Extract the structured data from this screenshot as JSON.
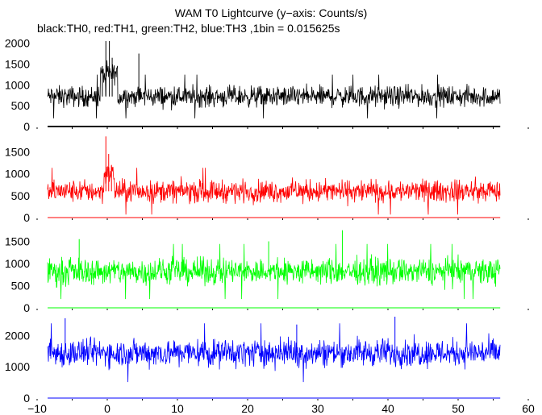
{
  "title": "WAM T0 Lightcurve (y−axis: Counts/s)",
  "subtitle": "black:TH0, red:TH1, green:TH2, blue:TH3 ,1bin = 0.015625s",
  "chart_data": {
    "type": "line",
    "x_ticks": [
      -10,
      0,
      10,
      20,
      30,
      40,
      50,
      60
    ],
    "xlim": [
      -10,
      60
    ],
    "data_x_range": [
      -8.5,
      56
    ],
    "bin_size_s": 0.015625,
    "grid": false,
    "panels": [
      {
        "series_name": "TH0",
        "color": "#000000",
        "ylim": [
          0,
          2050
        ],
        "y_ticks": [
          0,
          500,
          1000,
          1500,
          2000
        ],
        "baseline_mean": 720,
        "noise_lo": 420,
        "noise_hi": 1120,
        "features": [
          {
            "x": -0.2,
            "y": 2050
          },
          {
            "x": 0.3,
            "y": 2050
          },
          {
            "x": 0.7,
            "y": 1650
          },
          {
            "x": -0.7,
            "y": 1450
          },
          {
            "x": 4.5,
            "y": 1750
          }
        ],
        "burst": {
          "start": -1,
          "end": 1.5,
          "level": 1250
        }
      },
      {
        "series_name": "TH1",
        "color": "#ff0000",
        "ylim": [
          0,
          1800
        ],
        "y_ticks": [
          0,
          500,
          1000,
          1500
        ],
        "baseline_mean": 600,
        "noise_lo": 250,
        "noise_hi": 960,
        "features": [
          {
            "x": -0.2,
            "y": 1850
          },
          {
            "x": 0.2,
            "y": 1450
          },
          {
            "x": 0.6,
            "y": 1200
          }
        ],
        "burst": {
          "start": -0.5,
          "end": 1.0,
          "level": 1000
        }
      },
      {
        "series_name": "TH2",
        "color": "#00ff00",
        "ylim": [
          0,
          1800
        ],
        "y_ticks": [
          0,
          500,
          1000,
          1500
        ],
        "baseline_mean": 820,
        "noise_lo": 420,
        "noise_hi": 1250,
        "features": [
          {
            "x": 33.5,
            "y": 1750
          },
          {
            "x": -4,
            "y": 1550
          },
          {
            "x": 23,
            "y": 1500
          }
        ],
        "burst": null
      },
      {
        "series_name": "TH3",
        "color": "#0000ff",
        "ylim": [
          0,
          2600
        ],
        "y_ticks": [
          0,
          1000,
          2000
        ],
        "baseline_mean": 1450,
        "noise_lo": 800,
        "noise_hi": 2050,
        "features": [
          {
            "x": -6,
            "y": 2550
          },
          {
            "x": 41,
            "y": 2600
          },
          {
            "x": 27,
            "y": 2350
          }
        ],
        "burst": null
      }
    ]
  }
}
